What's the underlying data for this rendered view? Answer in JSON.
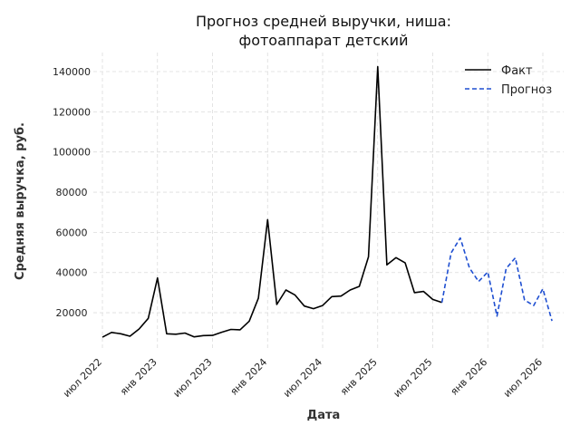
{
  "chart_data": {
    "type": "line",
    "title": "Прогноз средней выручки, ниша:",
    "subtitle": "фотоаппарат детский",
    "xlabel": "Дата",
    "ylabel": "Средняя выручка, руб.",
    "grid": true,
    "legend_position": "top-right",
    "ylim": [
      0,
      150000
    ],
    "x_tick_labels": [
      "июл 2022",
      "янв 2023",
      "июл 2023",
      "янв 2024",
      "июл 2024",
      "янв 2025",
      "июл 2025",
      "янв 2026",
      "июл 2026"
    ],
    "x_tick_months": [
      0,
      6,
      12,
      18,
      24,
      30,
      36,
      42,
      48
    ],
    "y_ticks": [
      20000,
      40000,
      60000,
      80000,
      100000,
      120000,
      140000
    ],
    "series": [
      {
        "name": "Факт",
        "color": "#000000",
        "style": "solid",
        "months": [
          0,
          1,
          2,
          3,
          4,
          5,
          6,
          7,
          8,
          9,
          10,
          11,
          12,
          13,
          14,
          15,
          16,
          17,
          18,
          19,
          20,
          21,
          22,
          23,
          24,
          25,
          26,
          27,
          28,
          29,
          30,
          31,
          32,
          33,
          34,
          35,
          36,
          37
        ],
        "values": [
          7800,
          10200,
          9500,
          8300,
          11900,
          17200,
          37300,
          9500,
          9300,
          9900,
          8000,
          8600,
          8700,
          10300,
          11700,
          11500,
          15800,
          27200,
          66300,
          24100,
          31300,
          28800,
          23300,
          22000,
          23600,
          28000,
          28300,
          31300,
          33100,
          47800,
          142500,
          43800,
          47400,
          44800,
          30000,
          30600,
          26600,
          25100
        ]
      },
      {
        "name": "Прогноз",
        "color": "#1f4fd1",
        "style": "dashed",
        "months": [
          37,
          38,
          39,
          40,
          41,
          42,
          43,
          44,
          45,
          46,
          47,
          48,
          49
        ],
        "values": [
          25100,
          49800,
          57200,
          42300,
          35500,
          40300,
          18300,
          42000,
          47300,
          26300,
          23600,
          31900,
          15900
        ]
      }
    ]
  }
}
